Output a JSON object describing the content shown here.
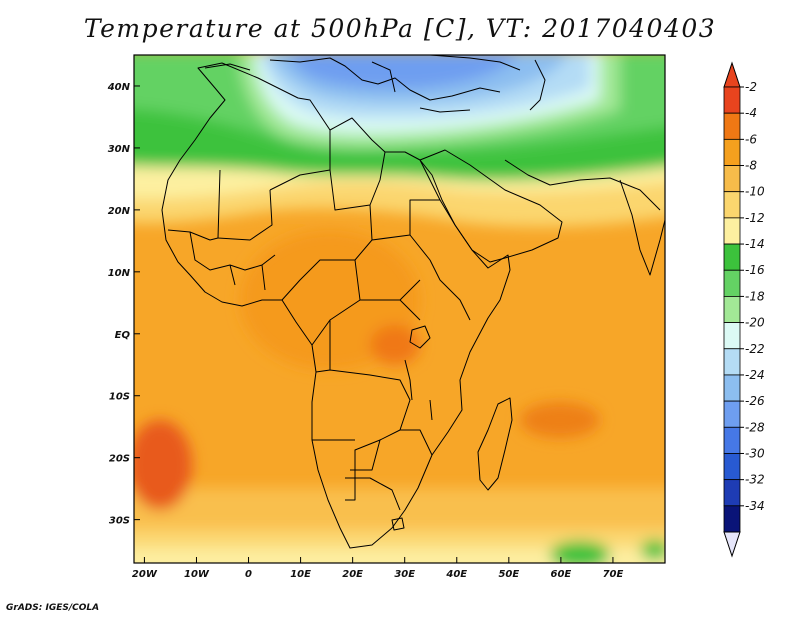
{
  "title": "Temperature at 500hPa [C], VT: 2017040403",
  "credit": "GrADS: IGES/COLA",
  "map": {
    "lon_range": [
      -22,
      80
    ],
    "lat_range": [
      -37,
      45
    ],
    "lon_ticks": [
      {
        "lon": -20,
        "label": "20W"
      },
      {
        "lon": -10,
        "label": "10W"
      },
      {
        "lon": 0,
        "label": "0"
      },
      {
        "lon": 10,
        "label": "10E"
      },
      {
        "lon": 20,
        "label": "20E"
      },
      {
        "lon": 30,
        "label": "30E"
      },
      {
        "lon": 40,
        "label": "40E"
      },
      {
        "lon": 50,
        "label": "50E"
      },
      {
        "lon": 60,
        "label": "60E"
      },
      {
        "lon": 70,
        "label": "70E"
      }
    ],
    "lat_ticks": [
      {
        "lat": 40,
        "label": "40N"
      },
      {
        "lat": 30,
        "label": "30N"
      },
      {
        "lat": 20,
        "label": "20N"
      },
      {
        "lat": 10,
        "label": "10N"
      },
      {
        "lat": 0,
        "label": "EQ"
      },
      {
        "lat": -10,
        "label": "10S"
      },
      {
        "lat": -20,
        "label": "20S"
      },
      {
        "lat": -30,
        "label": "30S"
      }
    ]
  },
  "colorbar": {
    "labels": [
      "-2",
      "-4",
      "-6",
      "-8",
      "-10",
      "-12",
      "-14",
      "-16",
      "-18",
      "-20",
      "-22",
      "-24",
      "-26",
      "-28",
      "-30",
      "-32",
      "-34"
    ],
    "colors": [
      "#e8441e",
      "#f07814",
      "#f5a01e",
      "#f7bc4a",
      "#fbd66e",
      "#fdf0a0",
      "#3cc23c",
      "#64d264",
      "#a2e896",
      "#dcfaf5",
      "#b4dcf5",
      "#8cbef0",
      "#6e9ef0",
      "#4678e6",
      "#285ad2",
      "#1e3cb4",
      "#0a1478"
    ]
  }
}
